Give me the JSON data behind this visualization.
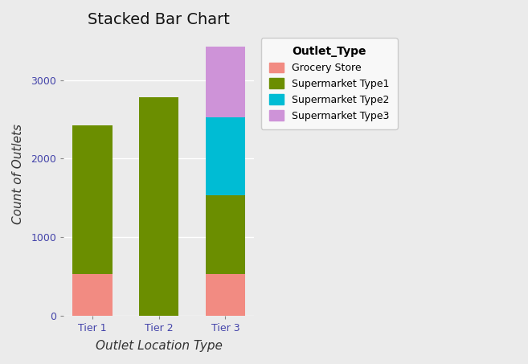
{
  "title": "Stacked Bar Chart",
  "xlabel": "Outlet Location Type",
  "ylabel": "Count of Outlets",
  "legend_title": "Outlet_Type",
  "categories": [
    "Tier 1",
    "Tier 2",
    "Tier 3"
  ],
  "segments": [
    {
      "label": "Grocery Store",
      "color": "#F28B82",
      "values": [
        528,
        0,
        528
      ]
    },
    {
      "label": "Supermarket Type1",
      "color": "#6B8E00",
      "values": [
        1900,
        2785,
        1000
      ]
    },
    {
      "label": "Supermarket Type2",
      "color": "#00BCD4",
      "values": [
        0,
        0,
        1000
      ]
    },
    {
      "label": "Supermarket Type3",
      "color": "#CE93D8",
      "values": [
        0,
        0,
        900
      ]
    }
  ],
  "ylim": [
    0,
    3600
  ],
  "ytick_values": [
    0,
    1000,
    2000,
    3000
  ],
  "ytick_labels": [
    "0",
    "1000",
    "2000",
    "3000"
  ],
  "panel_background": "#EBEBEB",
  "outer_background": "#EBEBEB",
  "grid_color": "#FFFFFF",
  "tick_color": "#4444AA",
  "label_color": "#333333",
  "title_fontsize": 14,
  "axis_label_fontsize": 11,
  "tick_fontsize": 9,
  "legend_fontsize": 9,
  "legend_title_fontsize": 10,
  "bar_width": 0.6
}
